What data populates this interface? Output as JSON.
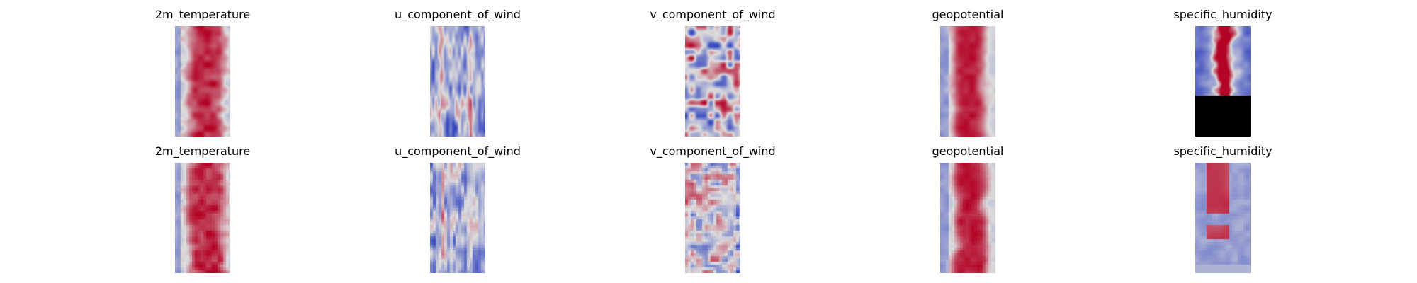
{
  "chart_data": {
    "type": "heatmap",
    "colormap": "coolwarm",
    "colors": {
      "low": "#3b4cc0",
      "mid": "#dddddd",
      "high": "#b40426"
    },
    "axes": "off",
    "layout": {
      "rows": 2,
      "cols": 5
    },
    "panels": [
      {
        "row": 0,
        "col": 0,
        "title": "2m_temperature",
        "pattern": "warm_band"
      },
      {
        "row": 0,
        "col": 1,
        "title": "u_component_of_wind",
        "pattern": "cool_streaks"
      },
      {
        "row": 0,
        "col": 2,
        "title": "v_component_of_wind",
        "pattern": "mixed_noise"
      },
      {
        "row": 0,
        "col": 3,
        "title": "geopotential",
        "pattern": "warm_band_smooth"
      },
      {
        "row": 0,
        "col": 4,
        "title": "specific_humidity",
        "pattern": "narrow_jagged_band"
      },
      {
        "row": 1,
        "col": 0,
        "title": "2m_temperature",
        "pattern": "warm_band_coarse"
      },
      {
        "row": 1,
        "col": 1,
        "title": "u_component_of_wind",
        "pattern": "cool_streaks_coarse"
      },
      {
        "row": 1,
        "col": 2,
        "title": "v_component_of_wind",
        "pattern": "fine_noise"
      },
      {
        "row": 1,
        "col": 3,
        "title": "geopotential",
        "pattern": "warm_band_coarse_smooth"
      },
      {
        "row": 1,
        "col": 4,
        "title": "specific_humidity",
        "pattern": "warm_block_coarse"
      }
    ]
  }
}
